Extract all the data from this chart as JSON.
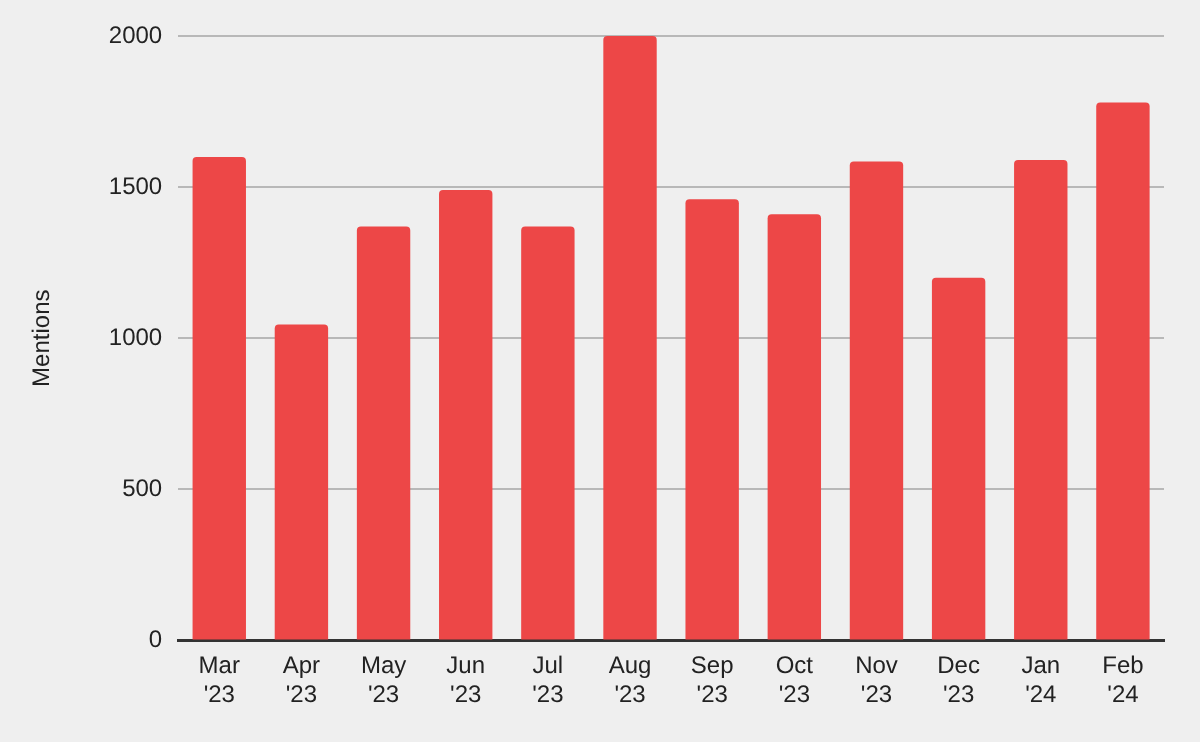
{
  "chart_data": {
    "type": "bar",
    "ylabel": "Mentions",
    "categories": [
      "Mar '23",
      "Apr '23",
      "May '23",
      "Jun '23",
      "Jul '23",
      "Aug '23",
      "Sep '23",
      "Oct '23",
      "Nov '23",
      "Dec '23",
      "Jan '24",
      "Feb '24"
    ],
    "values": [
      1600,
      1045,
      1370,
      1490,
      1370,
      2000,
      1460,
      1410,
      1585,
      1200,
      1590,
      1780
    ],
    "color": "#ed4747",
    "ylim": [
      0,
      2000
    ],
    "yticks": [
      0,
      500,
      1000,
      1500,
      2000
    ],
    "grid": "y"
  }
}
